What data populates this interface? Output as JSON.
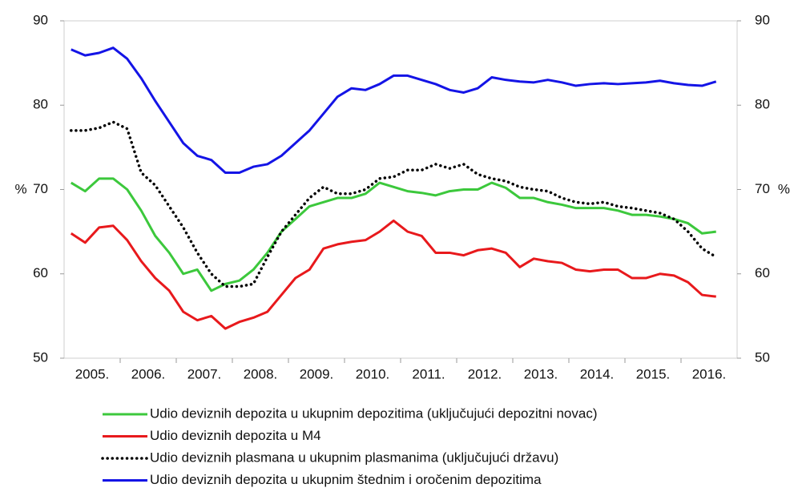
{
  "chart_data": {
    "type": "line",
    "ylabel": "%",
    "categories": [
      "2005.",
      null,
      null,
      null,
      "2006.",
      null,
      null,
      null,
      "2007.",
      null,
      null,
      null,
      "2008.",
      null,
      null,
      null,
      "2009.",
      null,
      null,
      null,
      "2010.",
      null,
      null,
      null,
      "2011.",
      null,
      null,
      null,
      "2012.",
      null,
      null,
      null,
      "2013.",
      null,
      null,
      null,
      "2014.",
      null,
      null,
      null,
      "2015.",
      null,
      null,
      null,
      "2016.",
      null,
      null
    ],
    "series": [
      {
        "name": "Udio deviznih depozita u ukupnim depozitima (uključujući depozitni novac)",
        "color": "#3cc83c",
        "style": "solid",
        "values": [
          70.8,
          69.8,
          71.3,
          71.3,
          70.0,
          67.5,
          64.5,
          62.5,
          60.0,
          60.5,
          58.0,
          58.8,
          59.2,
          60.5,
          62.5,
          65.0,
          66.5,
          68.0,
          68.5,
          69.0,
          69.0,
          69.5,
          70.8,
          70.3,
          69.8,
          69.6,
          69.3,
          69.8,
          70.0,
          70.0,
          70.8,
          70.2,
          69.0,
          69.0,
          68.5,
          68.2,
          67.8,
          67.8,
          67.8,
          67.5,
          67.0,
          67.0,
          66.8,
          66.5,
          66.0,
          64.8,
          65.0
        ]
      },
      {
        "name": "Udio deviznih depozita u M4",
        "color": "#e8191c",
        "style": "solid",
        "values": [
          64.8,
          63.7,
          65.5,
          65.7,
          64.0,
          61.5,
          59.5,
          58.0,
          55.5,
          54.5,
          55.0,
          53.5,
          54.3,
          54.8,
          55.5,
          57.5,
          59.5,
          60.5,
          63.0,
          63.5,
          63.8,
          64.0,
          65.0,
          66.3,
          65.0,
          64.5,
          62.5,
          62.5,
          62.2,
          62.8,
          63.0,
          62.5,
          60.8,
          61.8,
          61.5,
          61.3,
          60.5,
          60.3,
          60.5,
          60.5,
          59.5,
          59.5,
          60.0,
          59.8,
          59.0,
          57.5,
          57.3
        ]
      },
      {
        "name": "Udio deviznih plasmana u ukupnim plasmanima (uključujući državu)",
        "color": "#000000",
        "style": "dotted",
        "values": [
          77.0,
          77.0,
          77.3,
          78.0,
          77.2,
          72.0,
          70.5,
          68.0,
          65.5,
          62.5,
          60.0,
          58.5,
          58.5,
          58.8,
          62.0,
          65.0,
          67.0,
          69.0,
          70.3,
          69.5,
          69.5,
          70.0,
          71.3,
          71.5,
          72.3,
          72.3,
          73.0,
          72.5,
          73.0,
          71.8,
          71.3,
          71.0,
          70.3,
          70.0,
          69.8,
          69.0,
          68.5,
          68.3,
          68.5,
          68.0,
          67.8,
          67.5,
          67.2,
          66.5,
          65.0,
          63.0,
          62.0
        ]
      },
      {
        "name": "Udio deviznih depozita u ukupnim štednim i oročenim depozitima",
        "color": "#1414e6",
        "style": "solid",
        "values": [
          86.6,
          85.9,
          86.2,
          86.8,
          85.5,
          83.2,
          80.5,
          78.0,
          75.5,
          74.0,
          73.5,
          72.0,
          72.0,
          72.7,
          73.0,
          74.0,
          75.5,
          77.0,
          79.0,
          81.0,
          82.0,
          81.8,
          82.5,
          83.5,
          83.5,
          83.0,
          82.5,
          81.8,
          81.5,
          82.0,
          83.3,
          83.0,
          82.8,
          82.7,
          83.0,
          82.7,
          82.3,
          82.5,
          82.6,
          82.5,
          82.6,
          82.7,
          82.9,
          82.6,
          82.4,
          82.3,
          82.8
        ]
      }
    ],
    "ylim": [
      50,
      90
    ],
    "yticks": [
      50,
      60,
      70,
      80,
      90
    ],
    "y2lim": [
      50,
      90
    ],
    "y2ticks": [
      50,
      60,
      70,
      80,
      90
    ],
    "legend": "bottom"
  }
}
